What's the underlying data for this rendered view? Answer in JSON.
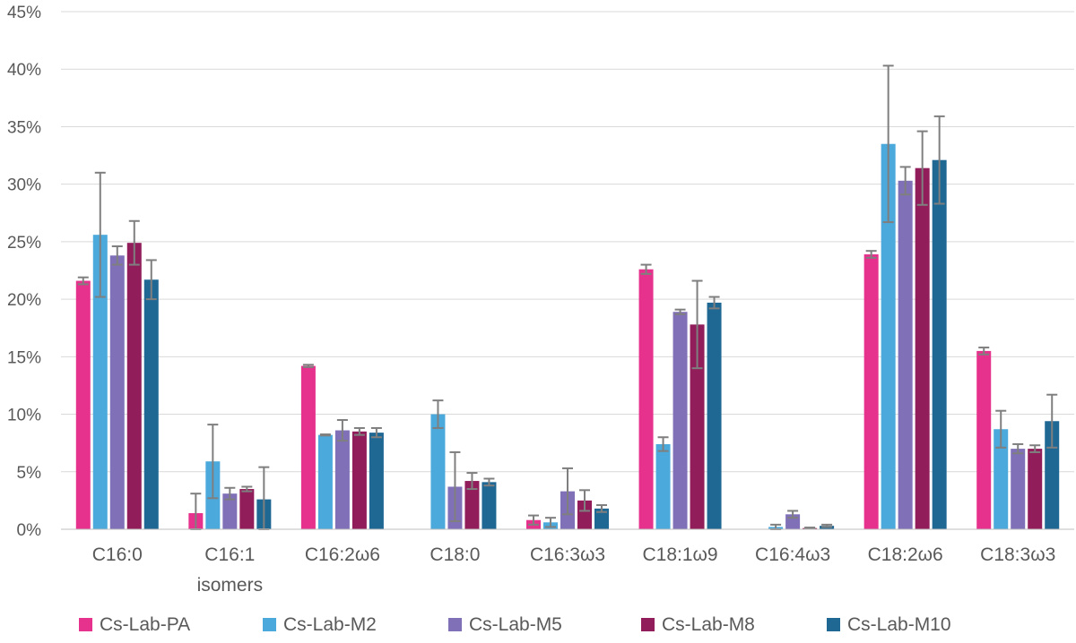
{
  "chart_data": {
    "type": "bar",
    "title": "",
    "xlabel": "",
    "ylabel": "",
    "ylim": [
      0,
      45
    ],
    "y_ticks": [
      "0%",
      "5%",
      "10%",
      "15%",
      "20%",
      "25%",
      "30%",
      "35%",
      "40%",
      "45%"
    ],
    "y_tick_values": [
      0,
      5,
      10,
      15,
      20,
      25,
      30,
      35,
      40,
      45
    ],
    "grid": true,
    "legend_position": "bottom",
    "categories": [
      [
        "C16:0"
      ],
      [
        "C16:1",
        "isomers"
      ],
      [
        "C16:2ω6"
      ],
      [
        "C18:0"
      ],
      [
        "C16:3ω3"
      ],
      [
        "C18:1ω9"
      ],
      [
        "C16:4ω3"
      ],
      [
        "C18:2ω6"
      ],
      [
        "C18:3ω3"
      ]
    ],
    "series": [
      {
        "name": "Cs-Lab-PA",
        "color": "#e6328c",
        "values": [
          21.6,
          1.4,
          14.2,
          0,
          0.8,
          22.6,
          0,
          23.9,
          15.5
        ],
        "errors": [
          0.3,
          1.7,
          0.1,
          0,
          0.4,
          0.4,
          0,
          0.3,
          0.3
        ]
      },
      {
        "name": "Cs-Lab-M2",
        "color": "#4ba9dc",
        "values": [
          25.6,
          5.9,
          8.2,
          10.0,
          0.6,
          7.4,
          0.2,
          33.5,
          8.7
        ],
        "errors": [
          5.4,
          3.2,
          0.05,
          1.2,
          0.4,
          0.6,
          0.2,
          6.8,
          1.6
        ]
      },
      {
        "name": "Cs-Lab-M5",
        "color": "#8070b8",
        "values": [
          23.8,
          3.1,
          8.6,
          3.7,
          3.3,
          18.9,
          1.3,
          30.3,
          7.0
        ],
        "errors": [
          0.8,
          0.5,
          0.9,
          3.0,
          2.0,
          0.2,
          0.3,
          1.2,
          0.4
        ]
      },
      {
        "name": "Cs-Lab-M8",
        "color": "#911d5a",
        "values": [
          24.9,
          3.5,
          8.5,
          4.2,
          2.5,
          17.8,
          0.1,
          31.4,
          7.0
        ],
        "errors": [
          1.9,
          0.2,
          0.3,
          0.7,
          0.9,
          3.8,
          0.05,
          3.2,
          0.3
        ]
      },
      {
        "name": "Cs-Lab-M10",
        "color": "#1f6894",
        "values": [
          21.7,
          2.6,
          8.4,
          4.1,
          1.8,
          19.7,
          0.3,
          32.1,
          9.4
        ],
        "errors": [
          1.7,
          2.8,
          0.4,
          0.3,
          0.3,
          0.5,
          0.1,
          3.8,
          2.3
        ]
      }
    ]
  }
}
